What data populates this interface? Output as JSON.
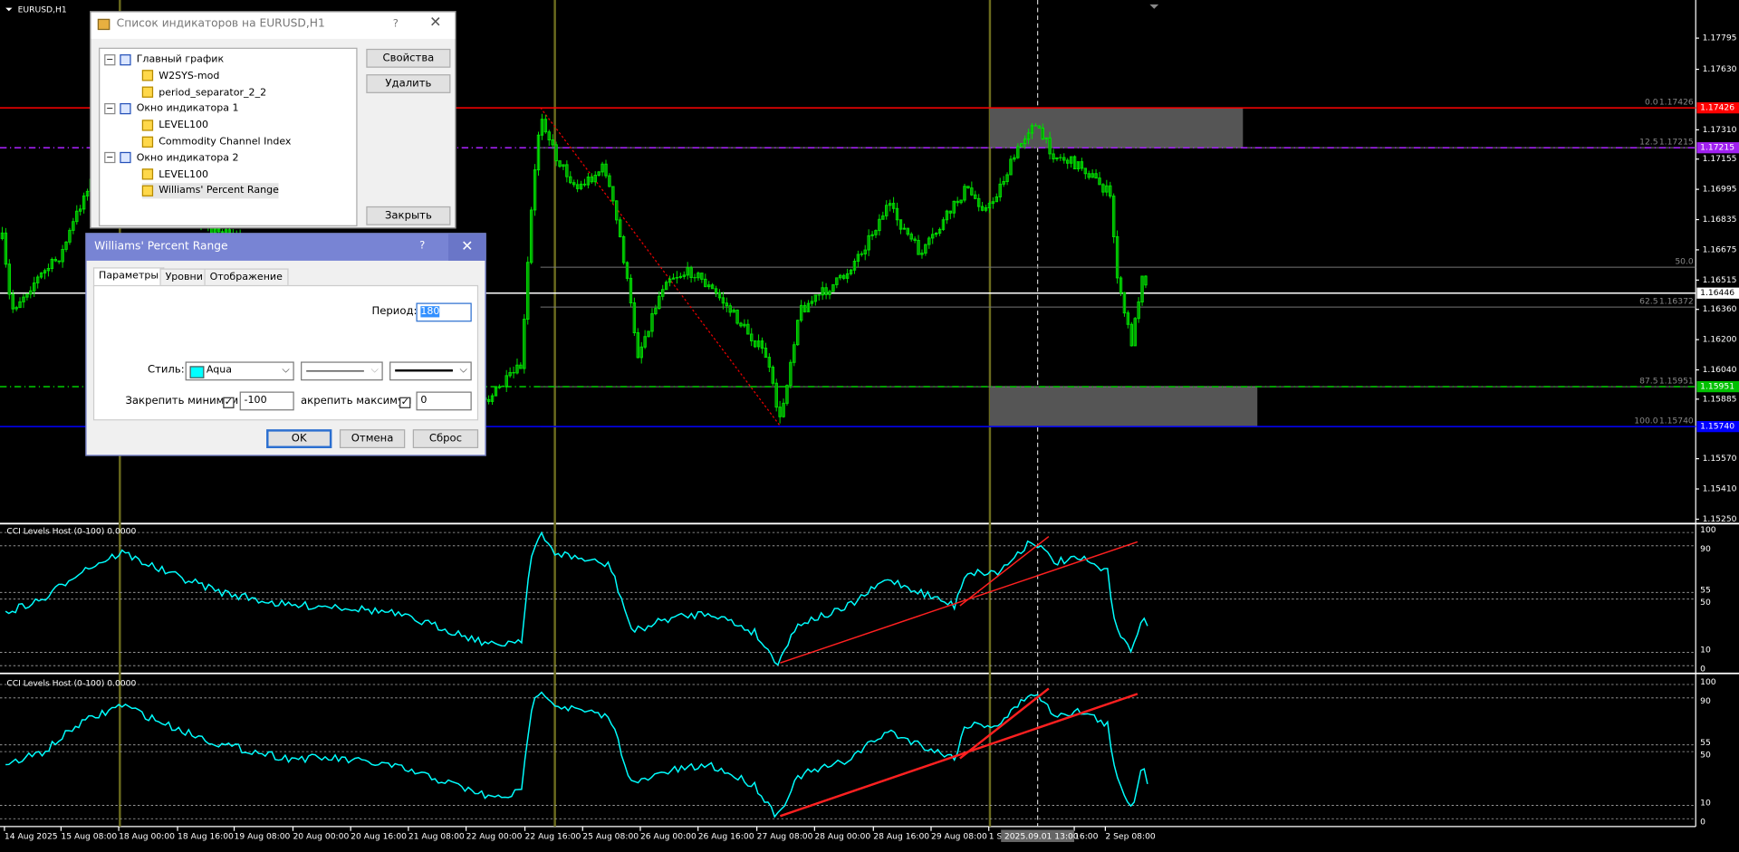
{
  "chart_window": {
    "title": "EURUSD,H1",
    "price_scale": [
      "1.17795",
      "1.17630",
      "1.17310",
      "1.17155",
      "1.16995",
      "1.16835",
      "1.16675",
      "1.16515",
      "1.16360",
      "1.16200",
      "1.16040",
      "1.15885",
      "1.15570",
      "1.15410",
      "1.15250"
    ],
    "price_markers": [
      {
        "label": "1.17426",
        "color": "#ff0000"
      },
      {
        "label": "1.17215",
        "color": "#a020f0"
      },
      {
        "label": "1.16446",
        "color": "#ffffff"
      },
      {
        "label": "1.15951",
        "color": "#00c000"
      },
      {
        "label": "1.15740",
        "color": "#0000ff"
      }
    ],
    "fib_levels": [
      {
        "level": "0.0",
        "price": "1.17426"
      },
      {
        "level": "12.5",
        "price": "1.17215"
      },
      {
        "level": "50.0"
      },
      {
        "level": "62.5",
        "price": "1.16372"
      },
      {
        "level": "87.5",
        "price": "1.15951"
      },
      {
        "level": "100.0",
        "price": "1.15740"
      }
    ],
    "time_scale": [
      "14 Aug 2025",
      "15 Aug 08:00",
      "18 Aug 00:00",
      "18 Aug 16:00",
      "19 Aug 08:00",
      "20 Aug 00:00",
      "20 Aug 16:00",
      "21 Aug 08:00",
      "22 Aug 00:00",
      "22 Aug 16:00",
      "25 Aug 08:00",
      "26 Aug 00:00",
      "26 Aug 16:00",
      "27 Aug 08:00",
      "28 Aug 00:00",
      "28 Aug 16:00",
      "29 Aug 08:00",
      "1 S",
      "16:00",
      "2 Sep 08:00"
    ],
    "crosshair_time": "2025.09.01 13:00"
  },
  "indicator_windows": [
    {
      "title": "CCI Levels Host (0-100) 0.0000",
      "scale": [
        "100",
        "90",
        "55",
        "50",
        "10",
        "0"
      ]
    },
    {
      "title": "CCI Levels Host (0-100) 0.0000",
      "scale": [
        "100",
        "90",
        "55",
        "50",
        "10",
        "0"
      ]
    }
  ],
  "indicator_list_dialog": {
    "title": "Список индикаторов на EURUSD,H1",
    "help": "?",
    "tree": [
      {
        "label": "Главный график",
        "children": [
          "W2SYS-mod",
          "period_separator_2_2"
        ]
      },
      {
        "label": "Окно индикатора 1",
        "children": [
          "LEVEL100",
          "Commodity Channel Index"
        ]
      },
      {
        "label": "Окно индикатора 2",
        "children": [
          "LEVEL100",
          "Williams' Percent Range"
        ]
      }
    ],
    "buttons": [
      "Свойства",
      "Удалить",
      "Закрыть"
    ]
  },
  "properties_dialog": {
    "title": "Williams' Percent Range",
    "help": "?",
    "tabs": [
      "Параметры",
      "Уровни",
      "Отображение"
    ],
    "period_label": "Период:",
    "period_value": "180",
    "style_label": "Стиль:",
    "color_name": "Aqua",
    "fix_min_label": "Закрепить минимум",
    "fix_min_value": "-100",
    "fix_max_label": "акрепить максимум",
    "fix_max_value": "0",
    "buttons": [
      "OK",
      "Отмена",
      "Сброс"
    ]
  }
}
